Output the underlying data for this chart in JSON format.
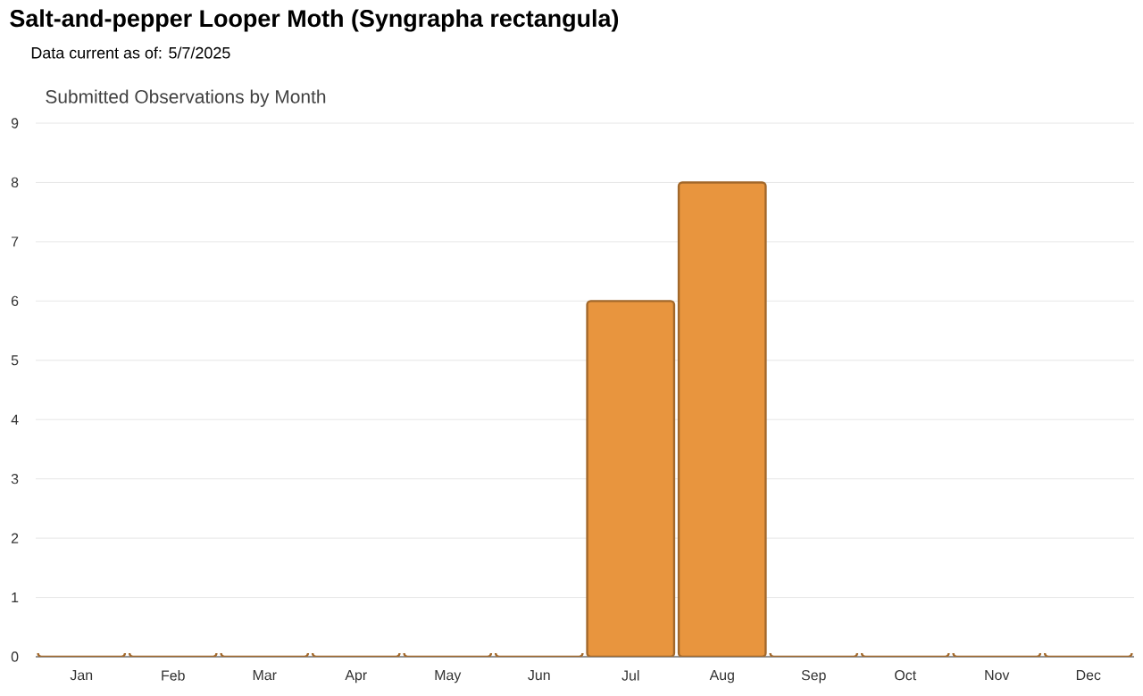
{
  "chart_data": {
    "type": "bar",
    "title": "Salt-and-pepper Looper Moth   (Syngrapha rectangula)",
    "subtitle": "Data current as of: 5/7/2025",
    "annotations": [
      "Submitted Observations by Month"
    ],
    "categories": [
      "Jan",
      "Feb",
      "Mar",
      "Apr",
      "May",
      "Jun",
      "Jul",
      "Aug",
      "Sep",
      "Oct",
      "Nov",
      "Dec"
    ],
    "values": [
      0,
      0,
      0,
      0,
      0,
      0,
      6,
      8,
      0,
      0,
      0,
      0
    ],
    "color": "#e8953e",
    "ylim": [
      0,
      9
    ],
    "yticks": [
      0,
      1,
      2,
      3,
      4,
      5,
      6,
      7,
      8,
      9
    ],
    "grid": "y"
  }
}
